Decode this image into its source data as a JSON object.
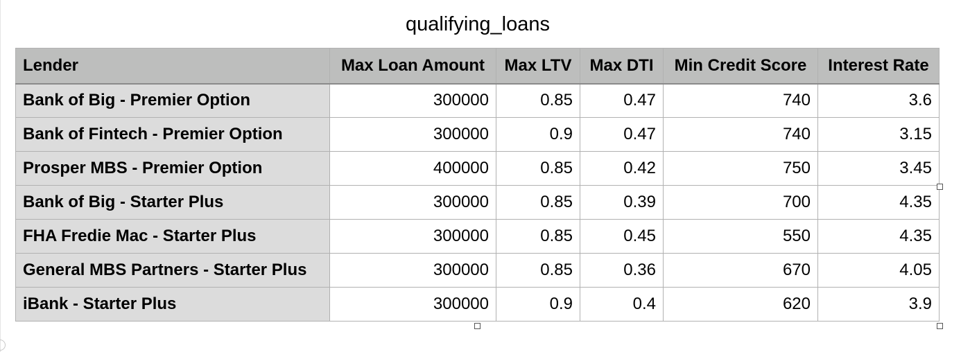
{
  "sheet": {
    "title": "qualifying_loans"
  },
  "table": {
    "headers": [
      "Lender",
      "Max Loan Amount",
      "Max LTV",
      "Max DTI",
      "Min Credit Score",
      "Interest Rate"
    ],
    "rows": [
      [
        "Bank of Big - Premier Option",
        "300000",
        "0.85",
        "0.47",
        "740",
        "3.6"
      ],
      [
        "Bank of Fintech - Premier Option",
        "300000",
        "0.9",
        "0.47",
        "740",
        "3.15"
      ],
      [
        "Prosper MBS - Premier Option",
        "400000",
        "0.85",
        "0.42",
        "750",
        "3.45"
      ],
      [
        "Bank of Big - Starter Plus",
        "300000",
        "0.85",
        "0.39",
        "700",
        "4.35"
      ],
      [
        "FHA Fredie Mac - Starter Plus",
        "300000",
        "0.85",
        "0.45",
        "550",
        "4.35"
      ],
      [
        "General MBS Partners - Starter Plus",
        "300000",
        "0.85",
        "0.36",
        "670",
        "4.05"
      ],
      [
        "iBank - Starter Plus",
        "300000",
        "0.9",
        "0.4",
        "620",
        "3.9"
      ]
    ]
  }
}
